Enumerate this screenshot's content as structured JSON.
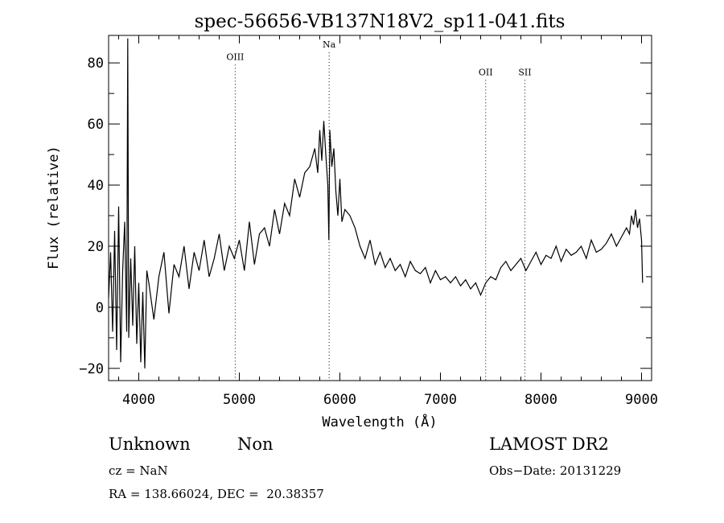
{
  "chart_data": {
    "type": "line",
    "title": "spec-56656-VB137N18V2_sp11-041.fits",
    "xlabel": "Wavelength (Å)",
    "ylabel": "Flux (relative)",
    "xlim": [
      3700,
      9100
    ],
    "ylim": [
      -24,
      89
    ],
    "xticks": [
      4000,
      5000,
      6000,
      7000,
      8000,
      9000
    ],
    "xtick_labels": [
      "4000",
      "5000",
      "6000",
      "7000",
      "8000",
      "9000"
    ],
    "yticks": [
      -20,
      0,
      20,
      40,
      60,
      80
    ],
    "ytick_labels": [
      "−20",
      "0",
      "20",
      "40",
      "60",
      "80"
    ],
    "grid": false,
    "lines": [
      {
        "label": "OIII",
        "x": 4959,
        "label_y": 81
      },
      {
        "label": "Na",
        "x": 5893,
        "label_y": 85
      },
      {
        "label": "OII",
        "x": 7450,
        "label_y": 76
      },
      {
        "label": "SII",
        "x": 7840,
        "label_y": 76
      }
    ],
    "series": [
      {
        "x": [
          3700,
          3720,
          3740,
          3760,
          3780,
          3800,
          3820,
          3840,
          3860,
          3880,
          3890,
          3900,
          3920,
          3940,
          3960,
          3980,
          4000,
          4020,
          4040,
          4060,
          4080,
          4100,
          4150,
          4200,
          4250,
          4300,
          4350,
          4400,
          4450,
          4500,
          4550,
          4600,
          4650,
          4700,
          4750,
          4800,
          4850,
          4900,
          4950,
          5000,
          5050,
          5100,
          5150,
          5200,
          5250,
          5300,
          5350,
          5400,
          5450,
          5500,
          5550,
          5600,
          5650,
          5700,
          5750,
          5780,
          5800,
          5820,
          5840,
          5860,
          5880,
          5890,
          5900,
          5920,
          5940,
          5960,
          5980,
          6000,
          6020,
          6050,
          6100,
          6150,
          6200,
          6250,
          6300,
          6350,
          6400,
          6450,
          6500,
          6550,
          6600,
          6650,
          6700,
          6750,
          6800,
          6850,
          6900,
          6950,
          7000,
          7050,
          7100,
          7150,
          7200,
          7250,
          7300,
          7350,
          7400,
          7450,
          7500,
          7550,
          7600,
          7650,
          7700,
          7750,
          7800,
          7850,
          7900,
          7950,
          8000,
          8050,
          8100,
          8150,
          8200,
          8250,
          8300,
          8350,
          8400,
          8450,
          8500,
          8550,
          8600,
          8650,
          8700,
          8750,
          8800,
          8850,
          8880,
          8900,
          8920,
          8940,
          8960,
          8980,
          9000,
          9010
        ],
        "y": [
          3,
          18,
          -8,
          25,
          -14,
          33,
          -18,
          12,
          28,
          -8,
          88,
          -10,
          16,
          -6,
          20,
          -12,
          8,
          -18,
          5,
          -20,
          12,
          8,
          -4,
          10,
          18,
          -2,
          14,
          10,
          20,
          6,
          18,
          12,
          22,
          10,
          16,
          24,
          12,
          20,
          16,
          22,
          12,
          28,
          14,
          24,
          26,
          20,
          32,
          24,
          34,
          30,
          42,
          36,
          44,
          46,
          52,
          44,
          58,
          48,
          61,
          50,
          40,
          22,
          58,
          46,
          52,
          38,
          30,
          42,
          28,
          32,
          30,
          26,
          20,
          16,
          22,
          14,
          18,
          13,
          16,
          12,
          14,
          10,
          15,
          12,
          11,
          13,
          8,
          12,
          9,
          10,
          8,
          10,
          7,
          9,
          6,
          8,
          4,
          8,
          10,
          9,
          13,
          15,
          12,
          14,
          16,
          12,
          15,
          18,
          14,
          17,
          16,
          20,
          15,
          19,
          17,
          18,
          20,
          16,
          22,
          18,
          19,
          21,
          24,
          20,
          23,
          26,
          24,
          30,
          27,
          32,
          26,
          29,
          22,
          8
        ]
      }
    ]
  },
  "footer": {
    "class": "Unknown",
    "subclass": "Non",
    "survey": "LAMOST DR2",
    "cz": "cz = NaN",
    "obs_date": "Obs−Date: 20131229",
    "radec": "RA = 138.66024, DEC =  20.38357"
  }
}
